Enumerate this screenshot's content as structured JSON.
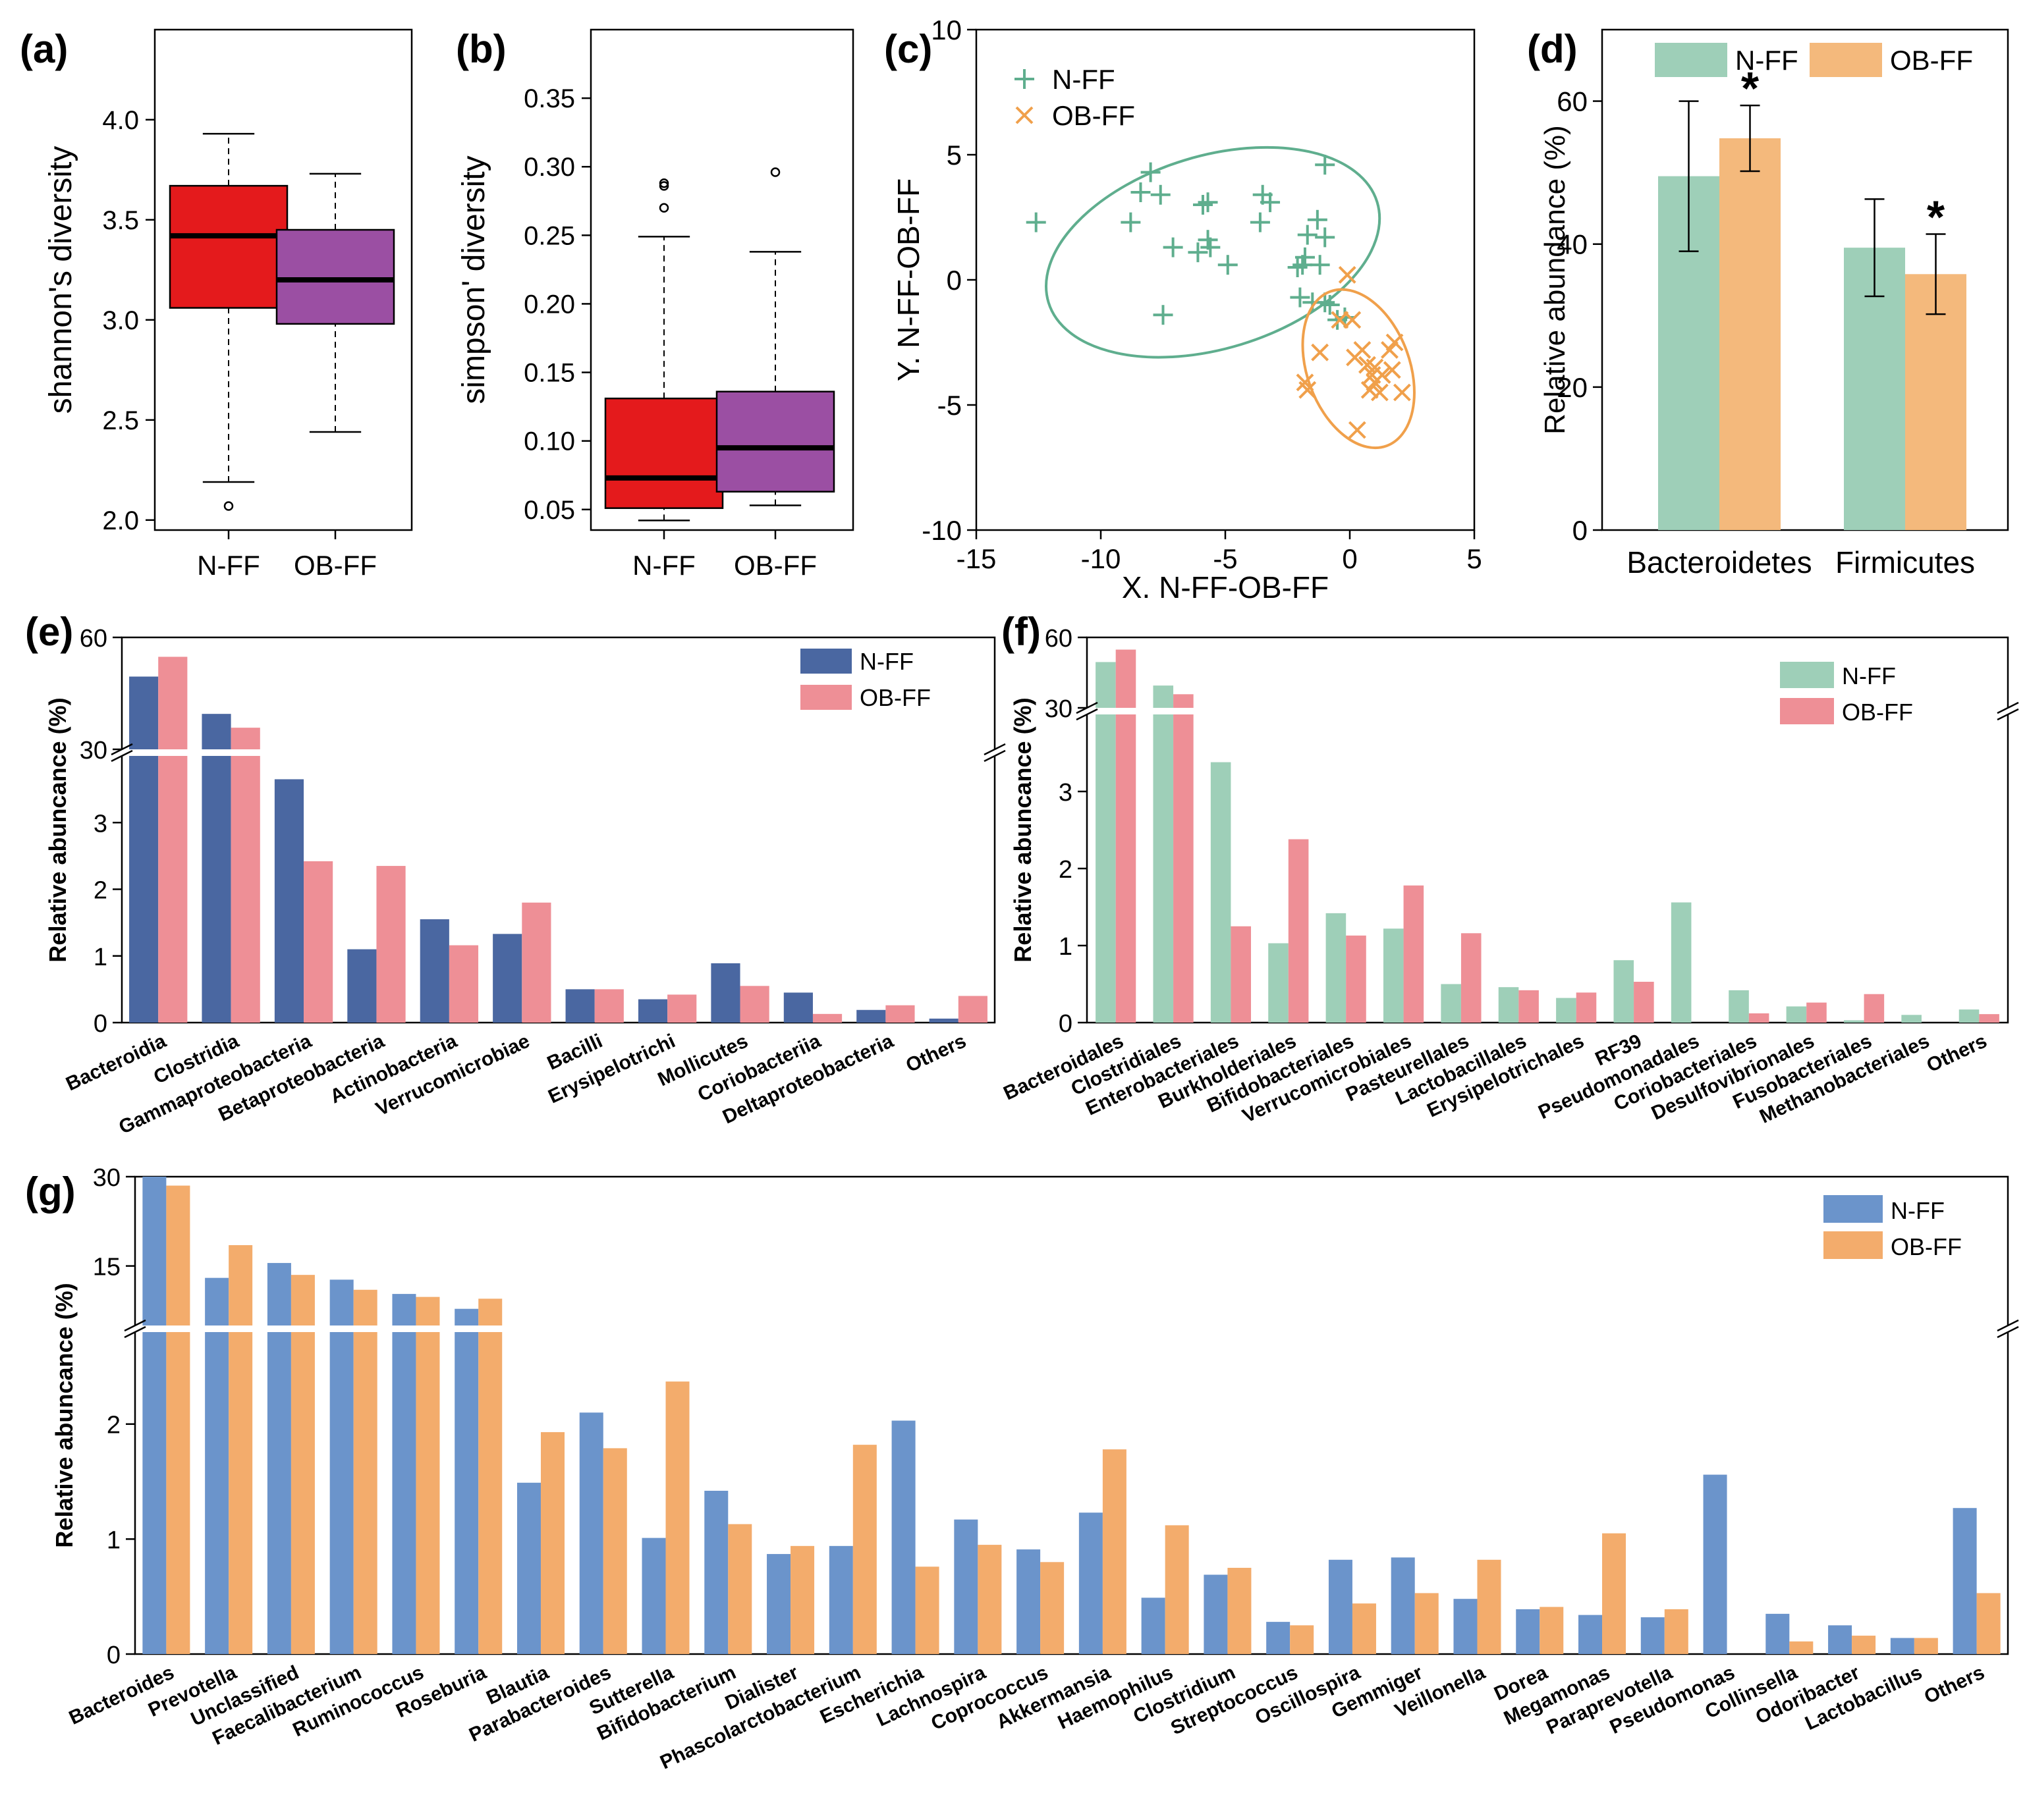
{
  "colors": {
    "red": "#e41a1c",
    "purple": "#9b4fa3",
    "green": "#9ecfb8",
    "orange": "#f4b97c",
    "green_line": "#5fae8e",
    "orange_line": "#f0a04b",
    "navy": "#4a67a1",
    "pink": "#ee8f96",
    "blue": "#6b94cb",
    "orange2": "#f3ac6c"
  },
  "chart_data": [
    {
      "panel": "(a)",
      "type": "box",
      "ylabel": "shannon's diversity",
      "ylim": [
        1.95,
        4.45
      ],
      "yticks": [
        2.0,
        2.5,
        3.0,
        3.5,
        4.0
      ],
      "ytick_labels": [
        "2.0",
        "2.5",
        "3.0",
        "3.5",
        "4.0"
      ],
      "categories": [
        "N-FF",
        "OB-FF"
      ],
      "boxes": [
        {
          "name": "N-FF",
          "whislo": 2.19,
          "q1": 3.06,
          "med": 3.42,
          "q3": 3.67,
          "whishi": 3.93,
          "fliers": [
            2.07
          ],
          "color": "#e41a1c"
        },
        {
          "name": "OB-FF",
          "whislo": 2.44,
          "q1": 2.98,
          "med": 3.2,
          "q3": 3.45,
          "whishi": 3.73,
          "fliers": [],
          "color": "#9b4fa3"
        }
      ]
    },
    {
      "panel": "(b)",
      "type": "box",
      "ylabel": "simpson' diversity",
      "ylim": [
        0.035,
        0.4
      ],
      "yticks": [
        0.05,
        0.1,
        0.15,
        0.2,
        0.25,
        0.3,
        0.35
      ],
      "ytick_labels": [
        "0.05",
        "0.10",
        "0.15",
        "0.20",
        "0.25",
        "0.30",
        "0.35"
      ],
      "categories": [
        "N-FF",
        "OB-FF"
      ],
      "boxes": [
        {
          "name": "N-FF",
          "whislo": 0.042,
          "q1": 0.051,
          "med": 0.073,
          "q3": 0.131,
          "whishi": 0.249,
          "fliers": [
            0.27,
            0.286,
            0.288
          ],
          "color": "#e41a1c"
        },
        {
          "name": "OB-FF",
          "whislo": 0.053,
          "q1": 0.063,
          "med": 0.095,
          "q3": 0.136,
          "whishi": 0.238,
          "fliers": [
            0.296
          ],
          "color": "#9b4fa3"
        }
      ]
    },
    {
      "panel": "(c)",
      "type": "scatter",
      "xlabel": "X. N-FF-OB-FF",
      "ylabel": "Y. N-FF-OB-FF",
      "xlim": [
        -15,
        5
      ],
      "ylim": [
        -10,
        10
      ],
      "xticks": [
        -15,
        -10,
        -5,
        0,
        5
      ],
      "xtick_labels": [
        "-15",
        "-10",
        "-5",
        "0",
        "5"
      ],
      "yticks": [
        -10,
        -5,
        0,
        5,
        10
      ],
      "ytick_labels": [
        "-10",
        "-5",
        "0",
        "5",
        "10"
      ],
      "legend": "top-left",
      "series": [
        {
          "name": "N-FF",
          "marker": "+",
          "color": "#5fae8e",
          "points": [
            [
              -12.6,
              2.3
            ],
            [
              -8.8,
              2.3
            ],
            [
              -8.4,
              3.5
            ],
            [
              -8.0,
              4.3
            ],
            [
              -7.6,
              3.4
            ],
            [
              -7.5,
              -1.4
            ],
            [
              -7.1,
              1.3
            ],
            [
              -6.1,
              1.1
            ],
            [
              -5.9,
              3.0
            ],
            [
              -5.7,
              3.1
            ],
            [
              -5.7,
              1.6
            ],
            [
              -5.6,
              1.3
            ],
            [
              -4.9,
              0.6
            ],
            [
              -3.6,
              2.3
            ],
            [
              -3.5,
              3.4
            ],
            [
              -3.2,
              3.1
            ],
            [
              -2.1,
              0.5
            ],
            [
              -1.9,
              0.6
            ],
            [
              -2.0,
              -0.7
            ],
            [
              -1.8,
              0.9
            ],
            [
              -1.7,
              1.8
            ],
            [
              -1.5,
              -0.9
            ],
            [
              -1.3,
              2.4
            ],
            [
              -1.2,
              0.6
            ],
            [
              -1.0,
              4.6
            ],
            [
              -1.0,
              -0.9
            ],
            [
              -1.0,
              1.7
            ],
            [
              -0.8,
              -1.0
            ],
            [
              -0.5,
              -1.6
            ],
            [
              -0.2,
              -1.5
            ]
          ],
          "ellipse": {
            "cx": -5.5,
            "cy": 1.1,
            "rx": 6.9,
            "ry": 3.85,
            "angle_deg": -17
          }
        },
        {
          "name": "OB-FF",
          "marker": "x",
          "color": "#f0a04b",
          "points": [
            [
              -1.8,
              -4.1
            ],
            [
              -1.7,
              -4.4
            ],
            [
              -1.2,
              -2.9
            ],
            [
              -0.4,
              -1.6
            ],
            [
              -0.1,
              0.2
            ],
            [
              0.1,
              -1.6
            ],
            [
              0.2,
              -3.1
            ],
            [
              0.3,
              -6.0
            ],
            [
              0.5,
              -2.8
            ],
            [
              0.7,
              -3.4
            ],
            [
              0.8,
              -4.4
            ],
            [
              0.9,
              -3.8
            ],
            [
              1.0,
              -4.1
            ],
            [
              1.0,
              -3.5
            ],
            [
              1.2,
              -4.5
            ],
            [
              1.3,
              -3.8
            ],
            [
              1.6,
              -2.8
            ],
            [
              1.7,
              -3.6
            ],
            [
              1.8,
              -2.5
            ],
            [
              2.1,
              -4.5
            ]
          ],
          "ellipse": {
            "cx": 0.35,
            "cy": -3.55,
            "rx": 3.3,
            "ry": 2.05,
            "angle_deg": 70
          }
        }
      ]
    },
    {
      "panel": "(d)",
      "type": "bar",
      "ylabel": "Relative abundance (%)",
      "ylim": [
        0,
        70
      ],
      "yticks": [
        0,
        20,
        40,
        60
      ],
      "ytick_labels": [
        "0",
        "20",
        "40",
        "60"
      ],
      "categories": [
        "Bacteroidetes",
        "Firmicutes"
      ],
      "series": [
        {
          "name": "N-FF",
          "color": "#9ecfb8",
          "values": [
            49.5,
            39.5
          ],
          "errors": [
            10.5,
            6.8
          ]
        },
        {
          "name": "OB-FF",
          "color": "#f4b97c",
          "values": [
            54.8,
            35.8
          ],
          "errors": [
            4.6,
            5.6
          ]
        }
      ],
      "annotations": [
        "*",
        "*"
      ],
      "legend": "top"
    },
    {
      "panel": "(e)",
      "type": "bar",
      "ylabel": "Relative abuncance (%)",
      "broken_axis": {
        "lower": [
          0,
          4
        ],
        "upper": [
          30,
          60
        ]
      },
      "yticks_lower": [
        0,
        1,
        2,
        3
      ],
      "ytick_labels_lower": [
        "0",
        "1",
        "2",
        "3"
      ],
      "yticks_upper": [
        30,
        60
      ],
      "ytick_labels_upper": [
        "30",
        "60"
      ],
      "categories": [
        "Bacteroidia",
        "Clostridia",
        "Gammaproteobacteria",
        "Betaproteobacteria",
        "Actinobacteria",
        "Verrucomicrobiae",
        "Bacilli",
        "Erysipelotrichi",
        "Mollicutes",
        "Coriobacteriia",
        "Deltaproteobacteria",
        "Others"
      ],
      "series": [
        {
          "name": "N-FF",
          "color": "#4a67a1",
          "values": [
            49.5,
            39.5,
            3.65,
            1.1,
            1.55,
            1.33,
            0.5,
            0.35,
            0.89,
            0.45,
            0.19,
            0.06
          ]
        },
        {
          "name": "OB-FF",
          "color": "#ee8f96",
          "values": [
            54.8,
            35.8,
            2.42,
            2.35,
            1.16,
            1.8,
            0.5,
            0.42,
            0.55,
            0.13,
            0.26,
            0.4
          ]
        }
      ],
      "legend": "top-right"
    },
    {
      "panel": "(f)",
      "type": "bar",
      "ylabel": "Relative abuncance (%)",
      "broken_axis": {
        "lower": [
          0,
          4
        ],
        "upper": [
          30,
          60
        ]
      },
      "yticks_lower": [
        0,
        1,
        2,
        3
      ],
      "ytick_labels_lower": [
        "0",
        "1",
        "2",
        "3"
      ],
      "yticks_upper": [
        30,
        60
      ],
      "ytick_labels_upper": [
        "30",
        "60"
      ],
      "categories": [
        "Bacteroidales",
        "Clostridiales",
        "Enterobacteriales",
        "Burkholderiales",
        "Bifidobacteriales",
        "Verrucomicrobiales",
        "Pasteurellales",
        "Lactobacillales",
        "Erysipelotrichales",
        "RF39",
        "Pseudomonadales",
        "Coriobacteriales",
        "Desulfovibrionales",
        "Fusobacteriales",
        "Methanobacteriales",
        "Others"
      ],
      "series": [
        {
          "name": "N-FF",
          "color": "#9ecfb8",
          "values": [
            49.5,
            39.5,
            3.38,
            1.03,
            1.42,
            1.22,
            0.5,
            0.46,
            0.32,
            0.81,
            1.56,
            0.42,
            0.21,
            0.03,
            0.1,
            0.17
          ]
        },
        {
          "name": "OB-FF",
          "color": "#ee8f96",
          "values": [
            54.8,
            35.8,
            1.25,
            2.38,
            1.13,
            1.78,
            1.16,
            0.42,
            0.39,
            0.53,
            0.0,
            0.12,
            0.26,
            0.37,
            0.0,
            0.11
          ]
        }
      ],
      "legend": "top-right"
    },
    {
      "panel": "(g)",
      "type": "bar",
      "ylabel": "Relative abuncance (%)",
      "broken_axis": {
        "lower": [
          0,
          2.8
        ],
        "upper": [
          5,
          30
        ]
      },
      "yticks_lower": [
        0,
        1,
        2
      ],
      "ytick_labels_lower": [
        "0",
        "1",
        "2"
      ],
      "yticks_upper": [
        15,
        30
      ],
      "ytick_labels_upper": [
        "15",
        "30"
      ],
      "categories": [
        "Bacteroides",
        "Prevotella",
        "Unclassified",
        "Faecalibacterium",
        "Ruminococcus",
        "Roseburia",
        "Blautia",
        "Parabacteroides",
        "Sutterella",
        "Bifidobacterium",
        "Dialister",
        "Phascolarctobacterium",
        "Escherichia",
        "Lachnospira",
        "Coprococcus",
        "Akkermansia",
        "Haemophilus",
        "Clostridium",
        "Streptococcus",
        "Oscillospira",
        "Gemmiger",
        "Veillonella",
        "Dorea",
        "Megamonas",
        "Paraprevotella",
        "Pseudomonas",
        "Collinsella",
        "Odoribacter",
        "Lactobacillus",
        "Others"
      ],
      "series": [
        {
          "name": "N-FF",
          "color": "#6b94cb",
          "values": [
            31.5,
            13.0,
            15.5,
            12.7,
            10.3,
            7.8,
            1.49,
            2.1,
            1.01,
            1.42,
            0.87,
            0.94,
            2.03,
            1.17,
            0.91,
            1.23,
            0.49,
            0.69,
            0.28,
            0.82,
            0.84,
            0.48,
            0.39,
            0.34,
            0.32,
            1.56,
            0.35,
            0.25,
            0.14,
            1.27
          ]
        },
        {
          "name": "OB-FF",
          "color": "#f3ac6c",
          "values": [
            28.5,
            18.5,
            13.5,
            11.0,
            9.8,
            9.5,
            1.93,
            1.79,
            2.37,
            1.13,
            0.94,
            1.82,
            0.76,
            0.95,
            0.8,
            1.78,
            1.12,
            0.75,
            0.25,
            0.44,
            0.53,
            0.82,
            0.41,
            1.05,
            0.39,
            0.0,
            0.11,
            0.16,
            0.14,
            0.53
          ]
        }
      ],
      "legend": "top-right"
    }
  ]
}
